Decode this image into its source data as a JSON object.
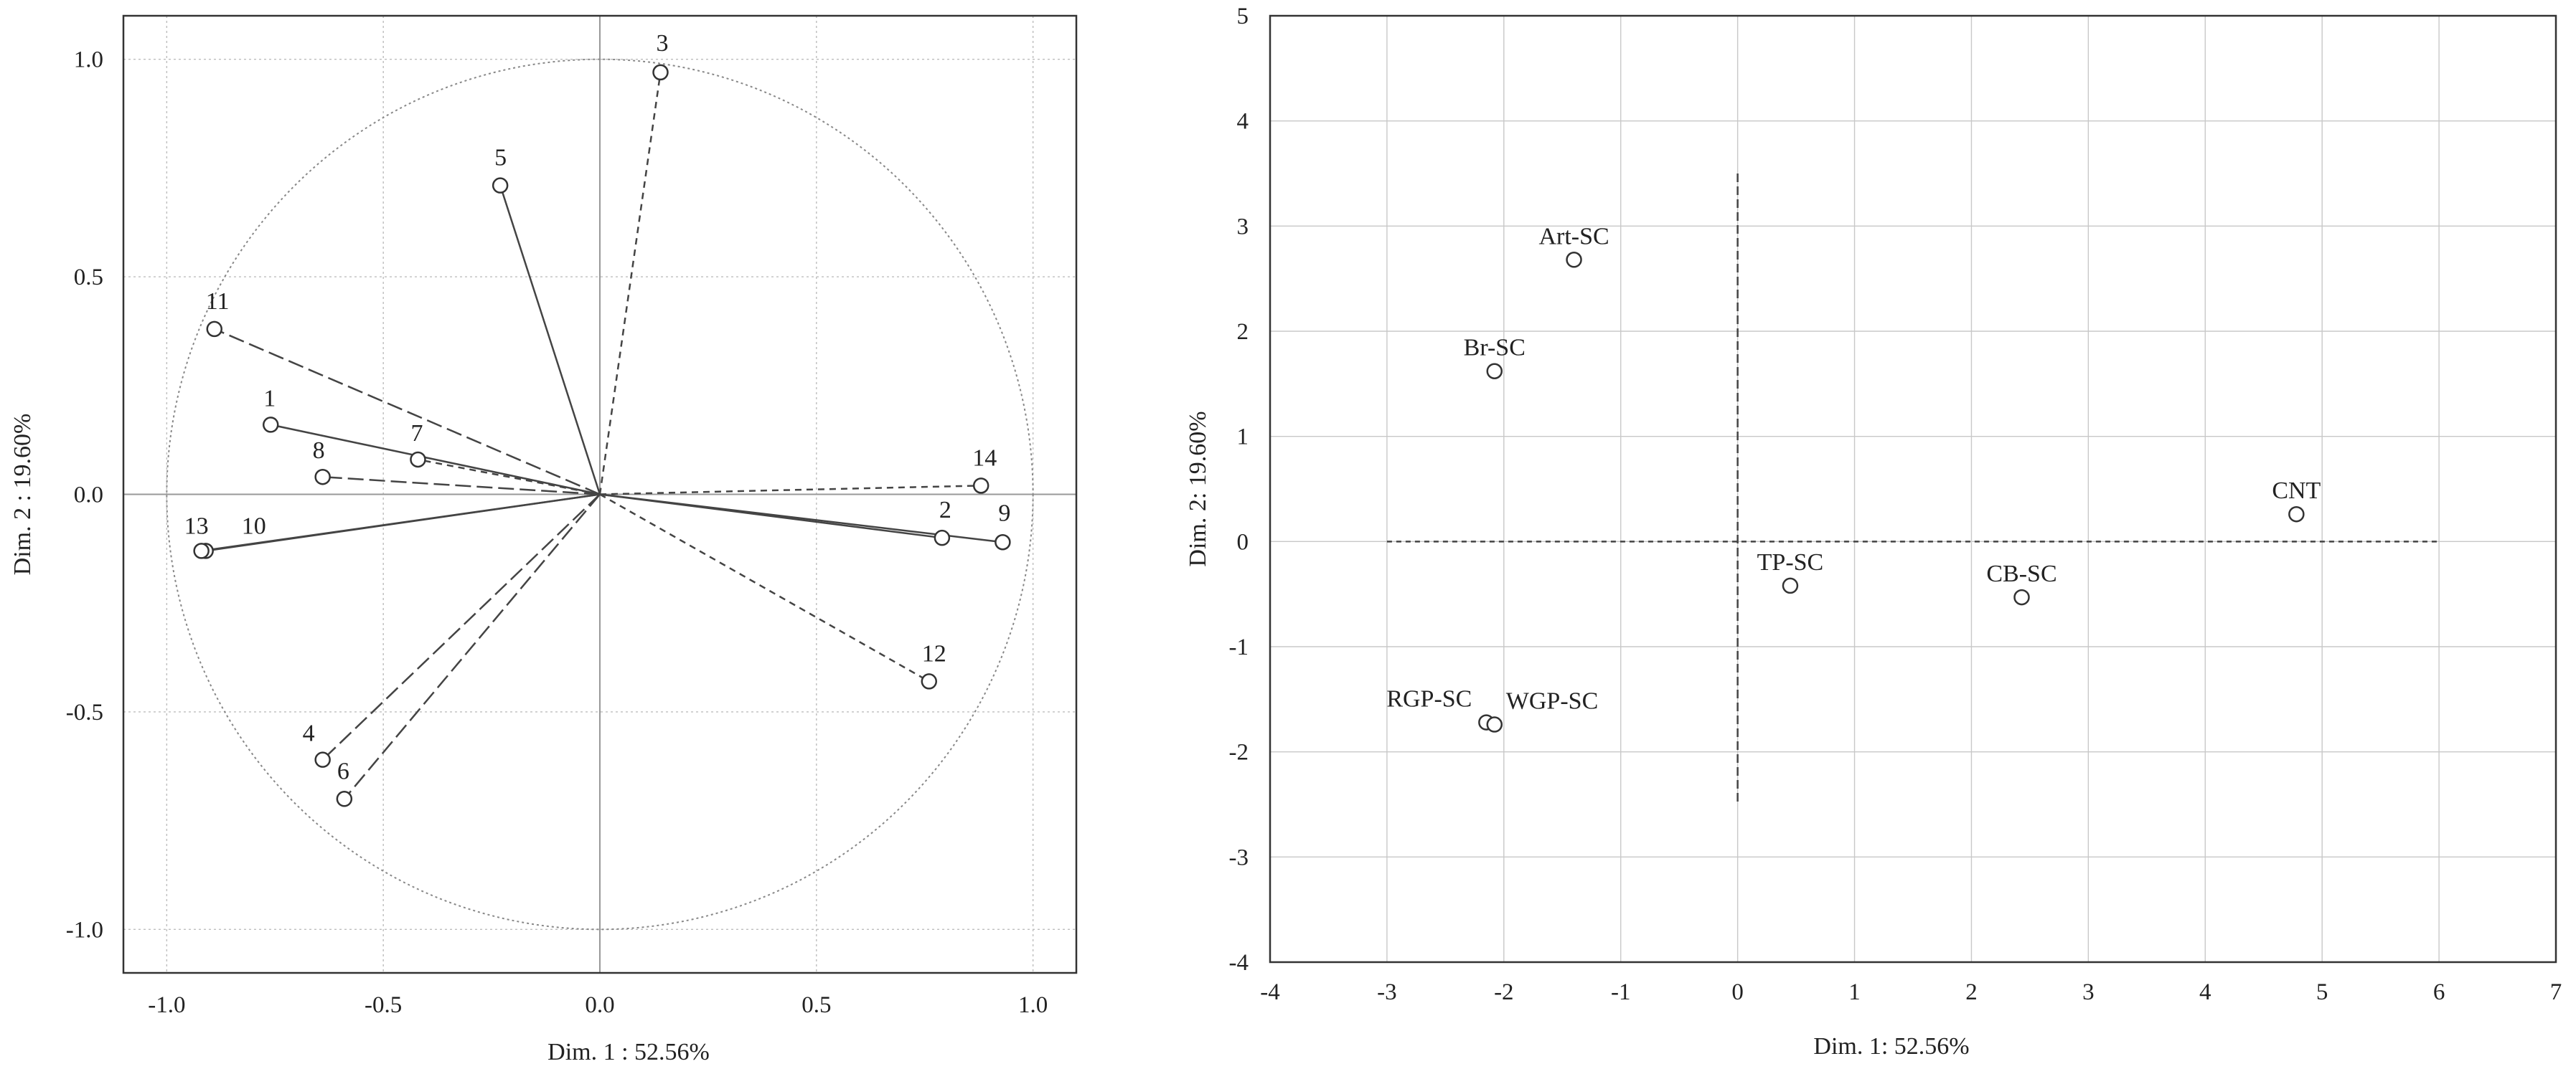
{
  "chart_data": [
    {
      "type": "scatter",
      "subtype": "correlation-circle",
      "xlabel": "Dim. 1 : 52.56%",
      "ylabel": "Dim. 2 : 19.60%",
      "xlim": [
        -1.1,
        1.1
      ],
      "ylim": [
        -1.1,
        1.1
      ],
      "xticks": [
        "-1.0",
        "-0.5",
        "0.0",
        "0.5",
        "1.0"
      ],
      "yticks": [
        "1.0",
        "0.5",
        "0.0",
        "-0.5",
        "-1.0"
      ],
      "grid": true,
      "unit_circle": true,
      "points": [
        {
          "label": "1",
          "x": -0.76,
          "y": 0.16,
          "line": "solid"
        },
        {
          "label": "2",
          "x": 0.79,
          "y": -0.1,
          "line": "solid"
        },
        {
          "label": "3",
          "x": 0.14,
          "y": 0.97,
          "line": "dashed"
        },
        {
          "label": "4",
          "x": -0.64,
          "y": -0.61,
          "line": "long-dash"
        },
        {
          "label": "5",
          "x": -0.23,
          "y": 0.71,
          "line": "solid"
        },
        {
          "label": "6",
          "x": -0.59,
          "y": -0.7,
          "line": "long-dash"
        },
        {
          "label": "7",
          "x": -0.42,
          "y": 0.08,
          "line": "dashed"
        },
        {
          "label": "8",
          "x": -0.64,
          "y": 0.04,
          "line": "long-dash"
        },
        {
          "label": "9",
          "x": 0.93,
          "y": -0.11,
          "line": "solid"
        },
        {
          "label": "10",
          "x": -0.91,
          "y": -0.13,
          "line": "solid"
        },
        {
          "label": "11",
          "x": -0.89,
          "y": 0.38,
          "line": "long-dash"
        },
        {
          "label": "12",
          "x": 0.76,
          "y": -0.43,
          "line": "dashed"
        },
        {
          "label": "13",
          "x": -0.92,
          "y": -0.13,
          "line": "solid"
        },
        {
          "label": "14",
          "x": 0.88,
          "y": 0.02,
          "line": "dashed"
        }
      ]
    },
    {
      "type": "scatter",
      "xlabel": "Dim. 1: 52.56%",
      "ylabel": "Dim. 2: 19.60%",
      "xlim": [
        -4,
        7
      ],
      "ylim": [
        -4,
        5
      ],
      "xticks": [
        "-4",
        "-3",
        "-2",
        "-1",
        "0",
        "1",
        "2",
        "3",
        "4",
        "5",
        "6",
        "7"
      ],
      "yticks": [
        "5",
        "4",
        "3",
        "2",
        "1",
        "0",
        "-1",
        "-2",
        "-3",
        "-4"
      ],
      "grid": true,
      "points": [
        {
          "label": "Art-SC",
          "x": -1.4,
          "y": 2.68
        },
        {
          "label": "Br-SC",
          "x": -2.08,
          "y": 1.62
        },
        {
          "label": "CNT",
          "x": 4.78,
          "y": 0.26
        },
        {
          "label": "TP-SC",
          "x": 0.45,
          "y": -0.42
        },
        {
          "label": "CB-SC",
          "x": 2.43,
          "y": -0.53
        },
        {
          "label": "RGP-SC",
          "x": -2.15,
          "y": -1.72
        },
        {
          "label": "WGP-SC",
          "x": -2.08,
          "y": -1.74
        }
      ]
    }
  ]
}
